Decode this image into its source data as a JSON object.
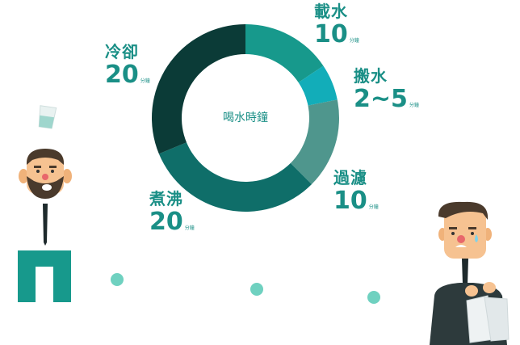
{
  "chart_data": {
    "type": "donut",
    "center_label": "喝水時鐘",
    "slices": [
      {
        "label": "載水",
        "display": "10",
        "unit": "分鐘",
        "value": 10,
        "color": "#17998c"
      },
      {
        "label": "搬水",
        "display": "2~5",
        "unit": "分鐘",
        "value": 4,
        "color": "#12adb9"
      },
      {
        "label": "過濾",
        "display": "10",
        "unit": "分鐘",
        "value": 10,
        "color": "#4f968d"
      },
      {
        "label": "煮沸",
        "display": "20",
        "unit": "分鐘",
        "value": 20,
        "color": "#0f6e69"
      },
      {
        "label": "冷卻",
        "display": "20",
        "unit": "分鐘",
        "value": 20,
        "color": "#0b3b37"
      }
    ]
  },
  "colors": {
    "label_text": "#1a8f86",
    "accent_dot": "#6fd1c0",
    "suit_dark": "#2d3a3c",
    "teal_block": "#17998c"
  },
  "icons": [
    "man-left-icon",
    "water-glass-icon",
    "man-right-icon",
    "water-bags-icon"
  ]
}
